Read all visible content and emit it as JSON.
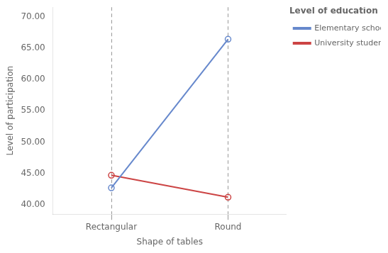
{
  "chart_data": {
    "type": "line",
    "categories": [
      "Rectangular",
      "Round"
    ],
    "series": [
      {
        "name": "Elementary school students",
        "color": "#6688CC",
        "values": [
          42.7,
          66.4
        ],
        "marker": "circle"
      },
      {
        "name": "University students",
        "color": "#CC4444",
        "values": [
          44.7,
          41.2
        ],
        "marker": "circle"
      }
    ],
    "xlabel": "Shape of tables",
    "ylabel": "Level of participation",
    "legend_title": "Level of education",
    "ylim": [
      38.5,
      71.5
    ],
    "yticks": [
      {
        "value": 40,
        "label": "40.00"
      },
      {
        "value": 45,
        "label": "45.00"
      },
      {
        "value": 50,
        "label": "50.00"
      },
      {
        "value": 55,
        "label": "55.00"
      },
      {
        "value": 60,
        "label": "60.00"
      },
      {
        "value": 65,
        "label": "65.00"
      },
      {
        "value": 70,
        "label": "70.00"
      }
    ],
    "grid": "x",
    "legend": "right"
  }
}
